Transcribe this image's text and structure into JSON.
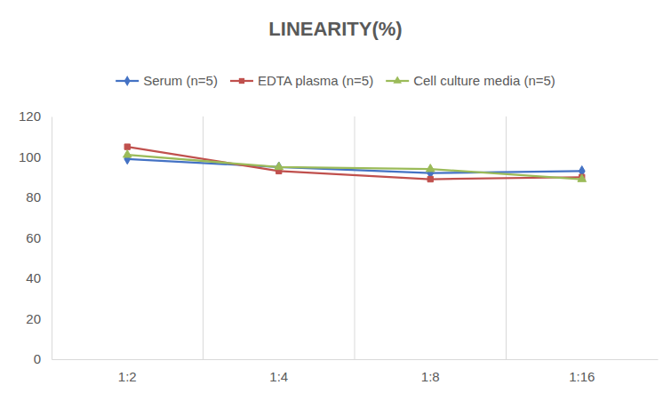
{
  "chart_data": {
    "type": "line",
    "title": "LINEARITY(%)",
    "categories": [
      "1:2",
      "1:4",
      "1:8",
      "1:16"
    ],
    "series": [
      {
        "name": "Serum (n=5)",
        "color": "#4472c4",
        "marker": "diamond",
        "values": [
          99,
          95,
          92,
          93
        ]
      },
      {
        "name": "EDTA plasma (n=5)",
        "color": "#c0504d",
        "marker": "square",
        "values": [
          105,
          93,
          89,
          90
        ]
      },
      {
        "name": "Cell culture media (n=5)",
        "color": "#9bbb59",
        "marker": "triangle",
        "values": [
          101,
          95,
          94,
          89
        ]
      }
    ],
    "ylim": [
      0,
      120
    ],
    "yticks": [
      0,
      20,
      40,
      60,
      80,
      100,
      120
    ],
    "grid": true,
    "legend": "top"
  }
}
